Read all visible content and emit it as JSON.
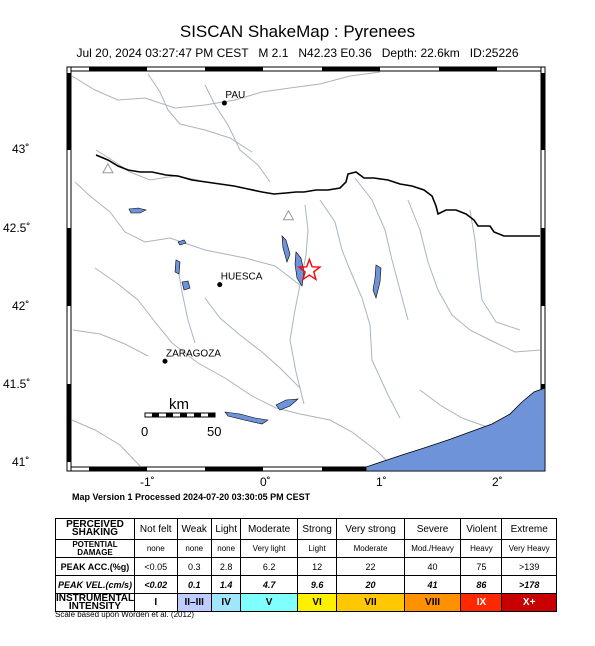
{
  "header": {
    "title": "SISCAN ShakeMap : Pyrenees",
    "subtitle": "Jul 20, 2024 03:27:47 PM CEST   M 2.1   N42.23 E0.36   Depth: 22.6km   ID:25226"
  },
  "map": {
    "lat_labels": [
      "43˚",
      "42.5˚",
      "42˚",
      "41.5˚",
      "41˚"
    ],
    "lon_labels": [
      "-1˚",
      "0˚",
      "1˚",
      "2˚"
    ],
    "cities": [
      {
        "name": "PAU",
        "lon": -0.37,
        "lat": 43.3
      },
      {
        "name": "HUESCA",
        "lon": -0.41,
        "lat": 42.14
      },
      {
        "name": "ZARAGOZA",
        "lon": -0.88,
        "lat": 41.65
      }
    ],
    "epicenter": {
      "lon": 0.36,
      "lat": 42.23
    },
    "stations": [
      {
        "lon": -1.37,
        "lat": 42.88
      },
      {
        "lon": 0.18,
        "lat": 42.58
      }
    ],
    "scale_bar": {
      "title": "km",
      "label_start": "0",
      "label_end": "50"
    },
    "colors": {
      "water": "#6f93d9",
      "epicenter": "#ff0000",
      "border": "#000000",
      "river": "#aab4c0"
    }
  },
  "version_text": "Map Version 1 Processed 2024-07-20 03:30:05 PM CEST",
  "legend": {
    "row_headers": [
      "PERCEIVED SHAKING",
      "POTENTIAL DAMAGE",
      "PEAK ACC.(%g)",
      "PEAK VEL.(cm/s)",
      "INSTRUMENTAL INTENSITY"
    ],
    "shaking": [
      "Not felt",
      "Weak",
      "Light",
      "Moderate",
      "Strong",
      "Very strong",
      "Severe",
      "Violent",
      "Extreme"
    ],
    "damage": [
      "none",
      "none",
      "none",
      "Very light",
      "Light",
      "Moderate",
      "Mod./Heavy",
      "Heavy",
      "Very Heavy"
    ],
    "acc": [
      "<0.05",
      "0.3",
      "2.8",
      "6.2",
      "12",
      "22",
      "40",
      "75",
      ">139"
    ],
    "vel": [
      "<0.02",
      "0.1",
      "1.4",
      "4.7",
      "9.6",
      "20",
      "41",
      "86",
      ">178"
    ],
    "intensity": [
      "I",
      "II–III",
      "IV",
      "V",
      "VI",
      "VII",
      "VIII",
      "IX",
      "X+"
    ],
    "intensity_colors": [
      "#ffffff",
      "#bfccff",
      "#a0e6ff",
      "#80ffff",
      "#fff000",
      "#ffc800",
      "#ff9100",
      "#ff2800",
      "#c80000"
    ]
  },
  "credit": "Scale based upon Worden et al. (2012)"
}
